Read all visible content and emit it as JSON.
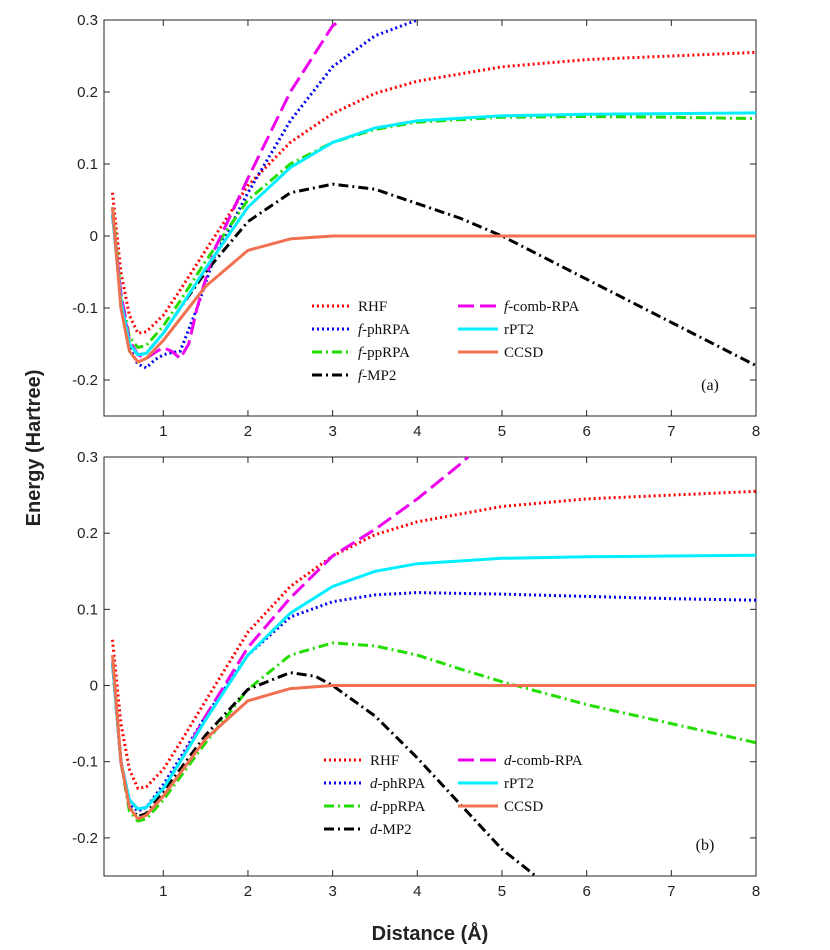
{
  "figure": {
    "ylabel": "Energy (Hartree)",
    "xlabel": "Distance (Å)"
  },
  "chart_data": [
    {
      "type": "line",
      "panel_label": "(a)",
      "xlim": [
        0.3,
        8
      ],
      "ylim": [
        -0.25,
        0.3
      ],
      "xticks": [
        1,
        2,
        3,
        4,
        5,
        6,
        7,
        8
      ],
      "yticks": [
        -0.2,
        -0.1,
        0,
        0.1,
        0.2,
        0.3
      ],
      "ytick_labels": [
        "-0.2",
        "-0.1",
        "0",
        "0.1",
        "0.2",
        "0.3"
      ],
      "legend_position": "bottom-center",
      "legend_columns": [
        [
          "RHF",
          "f-phRPA",
          "f-ppRPA",
          "f-MP2"
        ],
        [
          "f-comb-RPA",
          "rPT2",
          "CCSD"
        ]
      ],
      "series": [
        {
          "key": "rhf",
          "prefix": "",
          "name": "RHF",
          "color": "#ff0000",
          "dash": "dot",
          "x": [
            0.4,
            0.5,
            0.6,
            0.7,
            0.8,
            1.0,
            1.2,
            1.5,
            2.0,
            2.5,
            3.0,
            3.5,
            4.0,
            5.0,
            6.0,
            7.0,
            8.0
          ],
          "y": [
            0.06,
            -0.05,
            -0.11,
            -0.135,
            -0.133,
            -0.11,
            -0.075,
            -0.02,
            0.07,
            0.13,
            0.17,
            0.198,
            0.215,
            0.235,
            0.245,
            0.25,
            0.255
          ]
        },
        {
          "key": "phrpa",
          "prefix": "f",
          "name": "-phRPA",
          "color": "#0000ee",
          "dash": "dot",
          "x": [
            0.4,
            0.5,
            0.6,
            0.7,
            0.8,
            0.9,
            1.0,
            1.1,
            1.2,
            1.4,
            1.6,
            2.0,
            2.5,
            3.0,
            3.5,
            4.0
          ],
          "y": [
            0.03,
            -0.09,
            -0.155,
            -0.178,
            -0.183,
            -0.172,
            -0.165,
            -0.162,
            -0.16,
            -0.1,
            -0.03,
            0.06,
            0.16,
            0.235,
            0.278,
            0.3
          ]
        },
        {
          "key": "pprpa",
          "prefix": "f",
          "name": "-ppRPA",
          "color": "#22dd00",
          "dash": "dashdot",
          "x": [
            0.4,
            0.5,
            0.6,
            0.7,
            0.8,
            1.0,
            1.2,
            1.5,
            2.0,
            2.5,
            3.0,
            3.5,
            4.0,
            5.0,
            6.0,
            7.0,
            8.0
          ],
          "y": [
            0.04,
            -0.08,
            -0.14,
            -0.155,
            -0.152,
            -0.125,
            -0.09,
            -0.035,
            0.05,
            0.1,
            0.13,
            0.148,
            0.158,
            0.165,
            0.166,
            0.165,
            0.163
          ]
        },
        {
          "key": "mp2",
          "prefix": "f",
          "name": "-MP2",
          "color": "#000000",
          "dash": "dashdot",
          "x": [
            0.4,
            0.5,
            0.6,
            0.7,
            0.8,
            1.0,
            1.2,
            1.5,
            2.0,
            2.5,
            3.0,
            3.5,
            4.0,
            4.5,
            5.0,
            6.0,
            7.0,
            8.0
          ],
          "y": [
            0.03,
            -0.09,
            -0.15,
            -0.165,
            -0.163,
            -0.135,
            -0.1,
            -0.05,
            0.02,
            0.06,
            0.072,
            0.065,
            0.045,
            0.025,
            0.0,
            -0.06,
            -0.12,
            -0.18
          ]
        },
        {
          "key": "comb",
          "prefix": "f",
          "name": "-comb-RPA",
          "color": "#ee00ee",
          "dash": "longdash",
          "x": [
            0.4,
            0.5,
            0.6,
            0.7,
            0.8,
            0.9,
            1.0,
            1.1,
            1.2,
            1.3,
            1.4,
            1.6,
            2.0,
            2.5,
            3.0,
            3.1
          ],
          "y": [
            0.03,
            -0.08,
            -0.145,
            -0.165,
            -0.17,
            -0.162,
            -0.155,
            -0.16,
            -0.17,
            -0.15,
            -0.1,
            -0.02,
            0.08,
            0.2,
            0.292,
            0.3
          ]
        },
        {
          "key": "rpt2",
          "prefix": "",
          "name": "rPT2",
          "color": "#00eeff",
          "dash": "solid",
          "x": [
            0.4,
            0.5,
            0.6,
            0.7,
            0.8,
            1.0,
            1.2,
            1.5,
            2.0,
            2.5,
            3.0,
            3.5,
            4.0,
            5.0,
            6.0,
            7.0,
            8.0
          ],
          "y": [
            0.03,
            -0.09,
            -0.15,
            -0.165,
            -0.163,
            -0.135,
            -0.1,
            -0.045,
            0.04,
            0.095,
            0.13,
            0.15,
            0.16,
            0.167,
            0.169,
            0.17,
            0.171
          ]
        },
        {
          "key": "ccsd",
          "prefix": "",
          "name": "CCSD",
          "color": "#f07050",
          "dash": "solid",
          "x": [
            0.4,
            0.5,
            0.6,
            0.7,
            0.8,
            1.0,
            1.2,
            1.5,
            2.0,
            2.5,
            3.0,
            3.5,
            4.0,
            5.0,
            6.0,
            7.0,
            8.0
          ],
          "y": [
            0.04,
            -0.1,
            -0.16,
            -0.175,
            -0.17,
            -0.145,
            -0.115,
            -0.07,
            -0.02,
            -0.004,
            0.0,
            0.0,
            0.0,
            0.0,
            0.0,
            0.0,
            0.0
          ]
        }
      ]
    },
    {
      "type": "line",
      "panel_label": "(b)",
      "xlim": [
        0.3,
        8
      ],
      "ylim": [
        -0.25,
        0.3
      ],
      "xticks": [
        1,
        2,
        3,
        4,
        5,
        6,
        7,
        8
      ],
      "yticks": [
        -0.2,
        -0.1,
        0,
        0.1,
        0.2,
        0.3
      ],
      "ytick_labels": [
        "-0.2",
        "-0.1",
        "0",
        "0.1",
        "0.2",
        "0.3"
      ],
      "legend_position": "bottom-center",
      "legend_columns": [
        [
          "RHF",
          "d-phRPA",
          "d-ppRPA",
          "d-MP2"
        ],
        [
          "d-comb-RPA",
          "rPT2",
          "CCSD"
        ]
      ],
      "series": [
        {
          "key": "rhf",
          "prefix": "",
          "name": "RHF",
          "color": "#ff0000",
          "dash": "dot",
          "x": [
            0.4,
            0.5,
            0.6,
            0.7,
            0.8,
            1.0,
            1.2,
            1.5,
            2.0,
            2.5,
            3.0,
            3.5,
            4.0,
            5.0,
            6.0,
            7.0,
            8.0
          ],
          "y": [
            0.06,
            -0.05,
            -0.11,
            -0.135,
            -0.133,
            -0.11,
            -0.075,
            -0.02,
            0.07,
            0.13,
            0.17,
            0.198,
            0.215,
            0.235,
            0.245,
            0.25,
            0.255
          ]
        },
        {
          "key": "phrpa",
          "prefix": "d",
          "name": "-phRPA",
          "color": "#0000ee",
          "dash": "dot",
          "x": [
            0.4,
            0.5,
            0.6,
            0.7,
            0.8,
            1.0,
            1.2,
            1.5,
            2.0,
            2.5,
            3.0,
            3.5,
            4.0,
            4.5,
            5.0,
            6.0,
            7.0,
            8.0
          ],
          "y": [
            0.03,
            -0.1,
            -0.155,
            -0.165,
            -0.16,
            -0.13,
            -0.095,
            -0.04,
            0.04,
            0.09,
            0.11,
            0.119,
            0.122,
            0.121,
            0.12,
            0.117,
            0.114,
            0.112
          ]
        },
        {
          "key": "pprpa",
          "prefix": "d",
          "name": "-ppRPA",
          "color": "#22dd00",
          "dash": "dashdot",
          "x": [
            0.4,
            0.5,
            0.6,
            0.7,
            0.8,
            1.0,
            1.2,
            1.5,
            2.0,
            2.5,
            3.0,
            3.5,
            4.0,
            4.5,
            5.0,
            6.0,
            7.0,
            8.0
          ],
          "y": [
            0.03,
            -0.1,
            -0.165,
            -0.178,
            -0.175,
            -0.15,
            -0.12,
            -0.075,
            -0.005,
            0.04,
            0.056,
            0.052,
            0.04,
            0.022,
            0.005,
            -0.025,
            -0.05,
            -0.075
          ]
        },
        {
          "key": "mp2",
          "prefix": "d",
          "name": "-MP2",
          "color": "#000000",
          "dash": "dashdot",
          "x": [
            0.4,
            0.5,
            0.6,
            0.7,
            0.8,
            1.0,
            1.2,
            1.5,
            2.0,
            2.5,
            2.8,
            3.0,
            3.5,
            4.0,
            4.5,
            5.0,
            5.4
          ],
          "y": [
            0.03,
            -0.1,
            -0.16,
            -0.172,
            -0.168,
            -0.14,
            -0.11,
            -0.065,
            -0.005,
            0.017,
            0.012,
            0.0,
            -0.04,
            -0.095,
            -0.155,
            -0.215,
            -0.25
          ]
        },
        {
          "key": "comb",
          "prefix": "d",
          "name": "-comb-RPA",
          "color": "#ee00ee",
          "dash": "longdash",
          "x": [
            0.4,
            0.5,
            0.6,
            0.7,
            0.8,
            1.0,
            1.2,
            1.5,
            2.0,
            2.5,
            3.0,
            3.5,
            4.0,
            4.5,
            4.6
          ],
          "y": [
            0.03,
            -0.1,
            -0.15,
            -0.162,
            -0.16,
            -0.135,
            -0.1,
            -0.04,
            0.05,
            0.115,
            0.17,
            0.205,
            0.245,
            0.29,
            0.3
          ]
        },
        {
          "key": "rpt2",
          "prefix": "",
          "name": "rPT2",
          "color": "#00eeff",
          "dash": "solid",
          "x": [
            0.4,
            0.5,
            0.6,
            0.7,
            0.8,
            1.0,
            1.2,
            1.5,
            2.0,
            2.5,
            3.0,
            3.5,
            4.0,
            5.0,
            6.0,
            7.0,
            8.0
          ],
          "y": [
            0.03,
            -0.1,
            -0.15,
            -0.162,
            -0.16,
            -0.135,
            -0.1,
            -0.045,
            0.04,
            0.095,
            0.13,
            0.15,
            0.16,
            0.167,
            0.169,
            0.17,
            0.171
          ]
        },
        {
          "key": "ccsd",
          "prefix": "",
          "name": "CCSD",
          "color": "#f07050",
          "dash": "solid",
          "x": [
            0.4,
            0.5,
            0.6,
            0.7,
            0.8,
            1.0,
            1.2,
            1.5,
            2.0,
            2.5,
            3.0,
            3.5,
            4.0,
            5.0,
            6.0,
            7.0,
            8.0
          ],
          "y": [
            0.04,
            -0.1,
            -0.16,
            -0.175,
            -0.17,
            -0.145,
            -0.115,
            -0.07,
            -0.02,
            -0.004,
            0.0,
            0.0,
            0.0,
            0.0,
            0.0,
            0.0,
            0.0
          ]
        }
      ]
    }
  ]
}
